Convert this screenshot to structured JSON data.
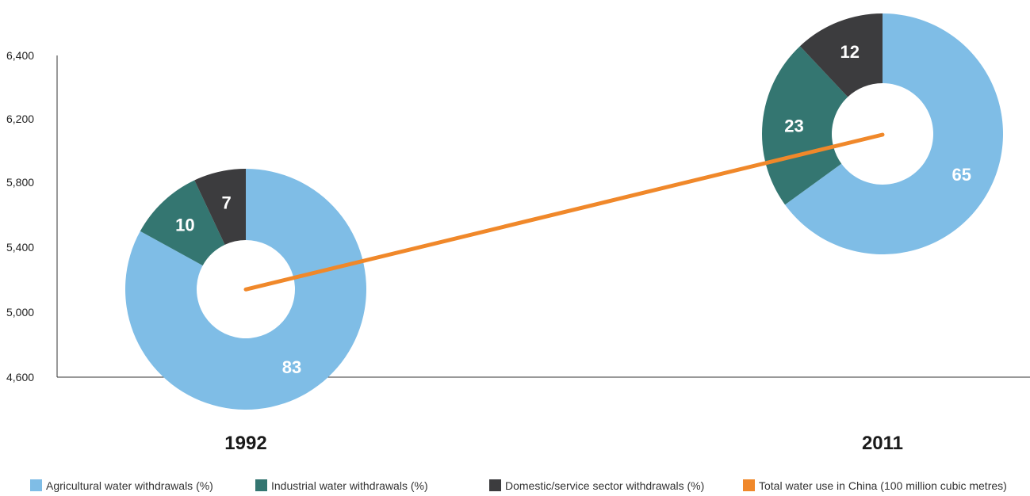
{
  "chart_data": {
    "type": "line",
    "y_axis": {
      "range": [
        4600,
        6400
      ],
      "ticks": [
        "4,600",
        "5,000",
        "5,400",
        "5,800",
        "6,200",
        "6,400"
      ]
    },
    "x": [
      "1992",
      "2011"
    ],
    "series": [
      {
        "name": "Total water use in China (100 million cubic metres)",
        "values": [
          5140,
          6100
        ],
        "color": "#f0882a"
      }
    ],
    "pies": [
      {
        "year": "1992",
        "slices": [
          {
            "name": "Agricultural water withdrawals (%)",
            "value": 83,
            "label": "83"
          },
          {
            "name": "Industrial water withdrawals (%)",
            "value": 10,
            "label": "10"
          },
          {
            "name": "Domestic/service sector withdrawals (%)",
            "value": 7,
            "label": "7"
          }
        ]
      },
      {
        "year": "2011",
        "slices": [
          {
            "name": "Agricultural water withdrawals (%)",
            "value": 65,
            "label": "65"
          },
          {
            "name": "Industrial water withdrawals (%)",
            "value": 23,
            "label": "23"
          },
          {
            "name": "Domestic/service sector withdrawals (%)",
            "value": 12,
            "label": "12"
          }
        ]
      }
    ],
    "legend": {
      "placement": "bottom",
      "items": [
        {
          "label": "Agricultural water withdrawals (%)",
          "color": "#7fbde6"
        },
        {
          "label": "Industrial water withdrawals (%)",
          "color": "#347671"
        },
        {
          "label": "Domestic/service sector withdrawals (%)",
          "color": "#3c3c3e"
        },
        {
          "label": "Total water use in China (100 million cubic metres)",
          "color": "#f0882a"
        }
      ]
    },
    "grid": false
  }
}
